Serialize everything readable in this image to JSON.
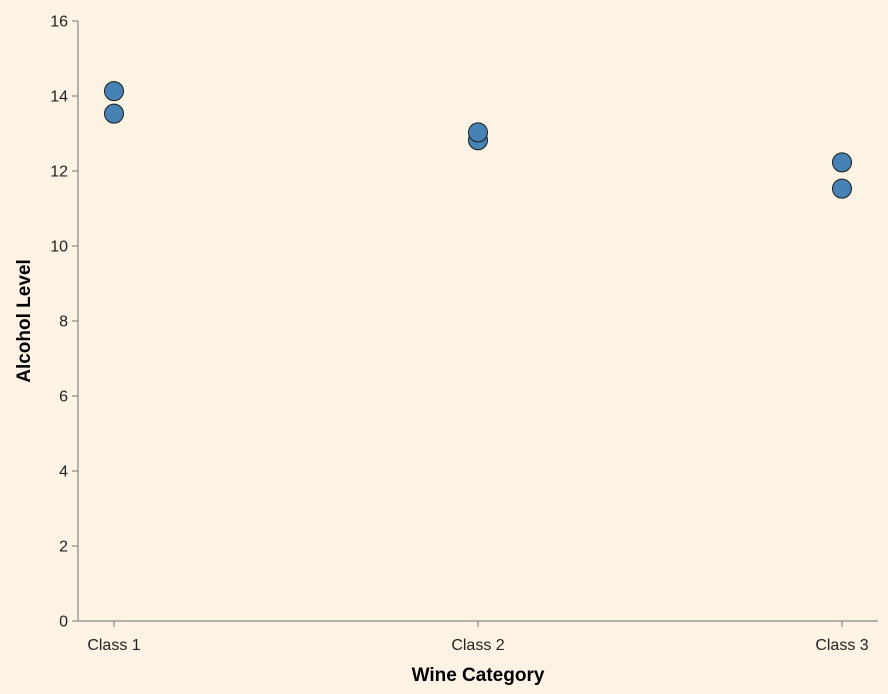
{
  "chart_data": {
    "type": "scatter",
    "title": "",
    "xlabel": "Wine Category",
    "ylabel": "Alcohol Level",
    "categories": [
      "Class 1",
      "Class 2",
      "Class 3"
    ],
    "points": [
      {
        "x": "Class 1",
        "y": 14.13
      },
      {
        "x": "Class 1",
        "y": 13.53
      },
      {
        "x": "Class 2",
        "y": 12.82
      },
      {
        "x": "Class 2",
        "y": 13.03
      },
      {
        "x": "Class 3",
        "y": 12.23
      },
      {
        "x": "Class 3",
        "y": 11.53
      }
    ],
    "ylim": [
      0,
      16
    ],
    "yticks": [
      0,
      2,
      4,
      6,
      8,
      10,
      12,
      14,
      16
    ],
    "grid": false,
    "colors": {
      "point": "#4682b4",
      "background": "#fdf3e5"
    }
  }
}
